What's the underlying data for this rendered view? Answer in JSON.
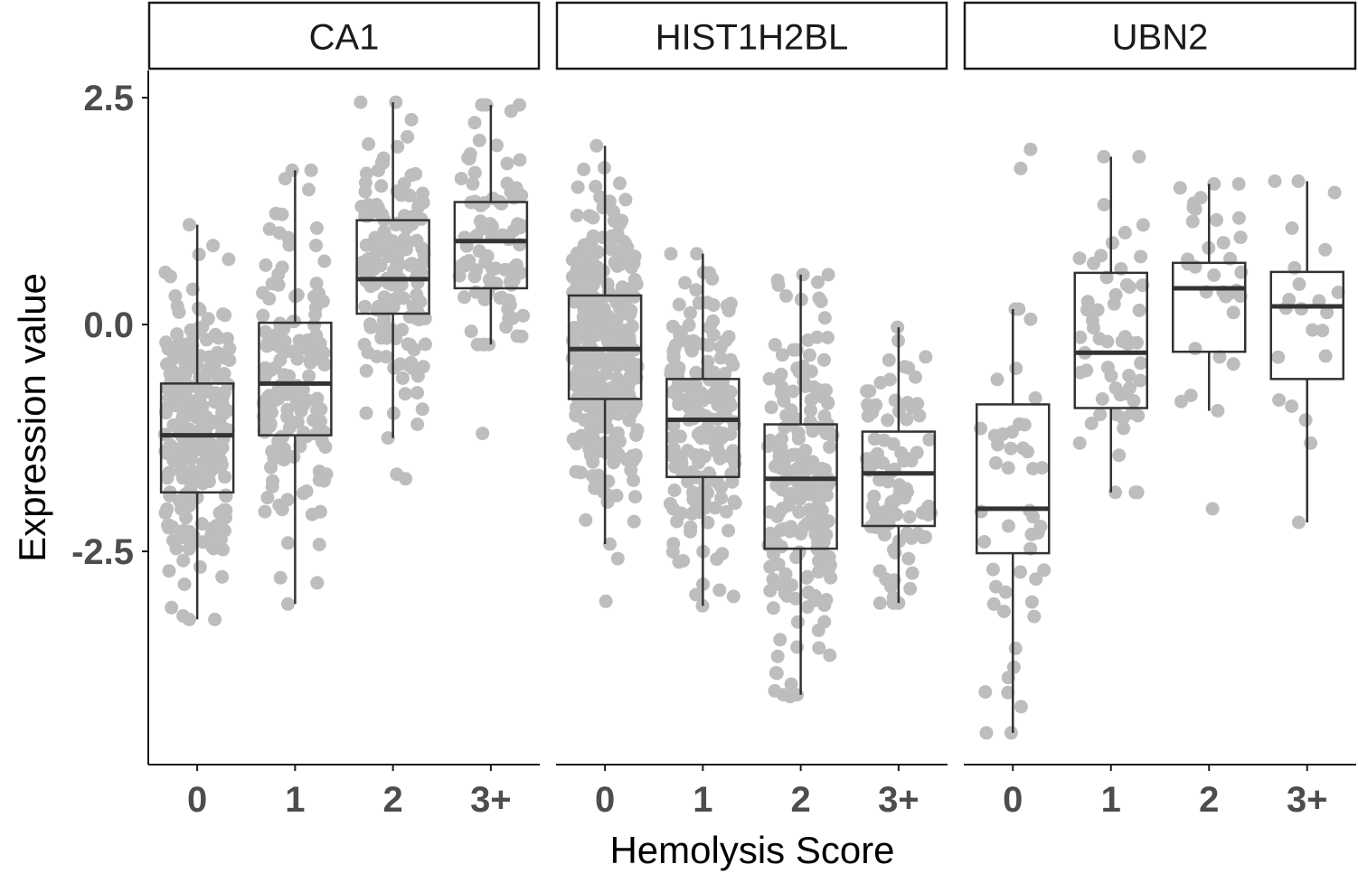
{
  "chart_data": {
    "type": "boxplot",
    "xlabel": "Hemolysis Score",
    "ylabel": "Expression value",
    "categories": [
      "0",
      "1",
      "2",
      "3+"
    ],
    "y_ticks": [
      2.5,
      0.0,
      -2.5
    ],
    "y_tick_labels": [
      "2.5",
      "0.0",
      "-2.5"
    ],
    "ylim": [
      -4.85,
      2.8
    ],
    "grid": false,
    "colors": {
      "points": "#bdbdbd",
      "box_stroke": "#333333",
      "median": "#333333",
      "axis": "#1a1a1a",
      "strip_fill": "#ffffff",
      "strip_stroke": "#1a1a1a"
    },
    "panels": [
      {
        "label": "CA1",
        "boxes": [
          {
            "category": "0",
            "n": 230,
            "whisker_low": -3.25,
            "q1": -1.85,
            "median": -1.22,
            "q3": -0.65,
            "whisker_high": 1.1
          },
          {
            "category": "1",
            "n": 150,
            "whisker_low": -3.08,
            "q1": -1.22,
            "median": -0.65,
            "q3": 0.02,
            "whisker_high": 1.7
          },
          {
            "category": "2",
            "n": 160,
            "whisker_low": -1.25,
            "q1": 0.12,
            "median": 0.5,
            "q3": 1.15,
            "whisker_high": 2.45
          },
          {
            "category": "3+",
            "n": 90,
            "whisker_low": -0.22,
            "q1": 0.4,
            "median": 0.92,
            "q3": 1.35,
            "whisker_high": 2.42
          }
        ],
        "outliers": [
          {
            "category": "3+",
            "y": -1.2
          },
          {
            "category": "2",
            "y": -1.65
          },
          {
            "category": "2",
            "y": -1.7
          }
        ]
      },
      {
        "label": "HIST1H2BL",
        "boxes": [
          {
            "category": "0",
            "n": 300,
            "whisker_low": -2.42,
            "q1": -0.82,
            "median": -0.27,
            "q3": 0.32,
            "whisker_high": 1.97
          },
          {
            "category": "1",
            "n": 190,
            "whisker_low": -3.1,
            "q1": -1.68,
            "median": -1.05,
            "q3": -0.6,
            "whisker_high": 0.78
          },
          {
            "category": "2",
            "n": 200,
            "whisker_low": -4.08,
            "q1": -2.47,
            "median": -1.7,
            "q3": -1.1,
            "whisker_high": 0.55
          },
          {
            "category": "3+",
            "n": 90,
            "whisker_low": -3.07,
            "q1": -2.22,
            "median": -1.64,
            "q3": -1.18,
            "whisker_high": -0.03
          }
        ],
        "outliers": [
          {
            "category": "0",
            "y": -3.05
          },
          {
            "category": "0",
            "y": -2.58
          },
          {
            "category": "2",
            "y": -4.1
          }
        ]
      },
      {
        "label": "UBN2",
        "boxes": [
          {
            "category": "0",
            "n": 45,
            "whisker_low": -4.5,
            "q1": -2.52,
            "median": -2.03,
            "q3": -0.88,
            "whisker_high": 0.17
          },
          {
            "category": "1",
            "n": 55,
            "whisker_low": -1.85,
            "q1": -0.92,
            "median": -0.31,
            "q3": 0.57,
            "whisker_high": 1.85
          },
          {
            "category": "2",
            "n": 30,
            "whisker_low": -0.95,
            "q1": -0.3,
            "median": 0.4,
            "q3": 0.68,
            "whisker_high": 1.55
          },
          {
            "category": "3+",
            "n": 20,
            "whisker_low": -2.18,
            "q1": -0.6,
            "median": 0.2,
            "q3": 0.58,
            "whisker_high": 1.58
          }
        ],
        "outliers": [
          {
            "category": "0",
            "y": 1.93
          },
          {
            "category": "0",
            "y": 1.72
          },
          {
            "category": "2",
            "y": -2.03
          }
        ]
      }
    ]
  }
}
